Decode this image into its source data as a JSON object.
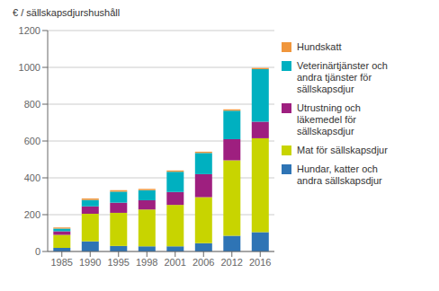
{
  "chart_data": {
    "type": "bar",
    "stacked": true,
    "ylabel": "€ / sällskapsdjurshushåll",
    "categories": [
      "1985",
      "1990",
      "1995",
      "1998",
      "2001",
      "2006",
      "2012",
      "2016"
    ],
    "series": [
      {
        "name": "Hundar, katter och\nandra sällskapsdjur",
        "color": "#2e74b5",
        "values": [
          20,
          55,
          30,
          28,
          28,
          45,
          85,
          105
        ]
      },
      {
        "name": "Mat för sällskapsdjur",
        "color": "#c8d400",
        "values": [
          70,
          150,
          180,
          200,
          225,
          250,
          410,
          510
        ]
      },
      {
        "name": "Utrustning och\nläkemedel för\nsällskapsdjur",
        "color": "#9e1f7f",
        "values": [
          20,
          40,
          55,
          50,
          70,
          125,
          115,
          90
        ]
      },
      {
        "name": "Veterinärtjänster och\nandra tjänster för\nsällskapsdjur",
        "color": "#00b0c0",
        "values": [
          15,
          35,
          60,
          55,
          110,
          115,
          155,
          285
        ]
      },
      {
        "name": "Hundskatt",
        "color": "#f0963c",
        "values": [
          5,
          8,
          8,
          7,
          7,
          7,
          7,
          7
        ]
      }
    ],
    "ylim": [
      0,
      1200
    ],
    "yticks": [
      0,
      200,
      400,
      600,
      800,
      1000,
      1200
    ],
    "grid": true,
    "legend": "right"
  }
}
